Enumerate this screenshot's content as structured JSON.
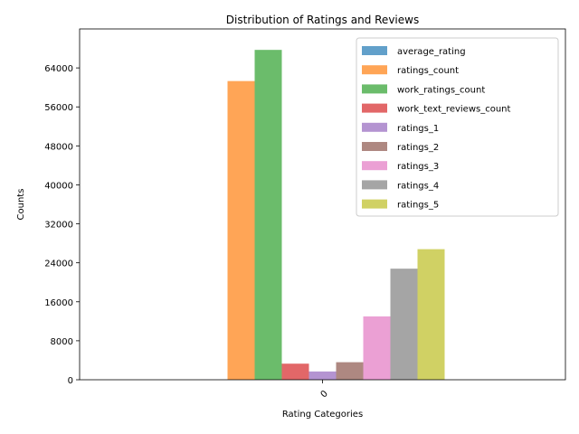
{
  "chart_data": {
    "type": "bar",
    "title": "Distribution of Ratings and Reviews",
    "xlabel": "Rating Categories",
    "ylabel": "Counts",
    "categories": [
      "0"
    ],
    "ylim": [
      0,
      72000
    ],
    "yticks": [
      0,
      8000,
      16000,
      24000,
      32000,
      40000,
      48000,
      56000,
      64000
    ],
    "ytick_labels": [
      "0",
      "8000",
      "16000",
      "24000",
      "32000",
      "40000",
      "48000",
      "56000",
      "64000"
    ],
    "grid": false,
    "legend_position": "top-right",
    "series": [
      {
        "name": "average_rating",
        "values": [
          4
        ],
        "color": "#1f77b4"
      },
      {
        "name": "ratings_count",
        "values": [
          61300
        ],
        "color": "#ff7f0e"
      },
      {
        "name": "work_ratings_count",
        "values": [
          67700
        ],
        "color": "#2ca02c"
      },
      {
        "name": "work_text_reviews_count",
        "values": [
          3300
        ],
        "color": "#d62728"
      },
      {
        "name": "ratings_1",
        "values": [
          1700
        ],
        "color": "#9467bd"
      },
      {
        "name": "ratings_2",
        "values": [
          3600
        ],
        "color": "#8c564b"
      },
      {
        "name": "ratings_3",
        "values": [
          13000
        ],
        "color": "#e377c2"
      },
      {
        "name": "ratings_4",
        "values": [
          22800
        ],
        "color": "#7f7f7f"
      },
      {
        "name": "ratings_5",
        "values": [
          26800
        ],
        "color": "#bcbd22"
      }
    ]
  }
}
